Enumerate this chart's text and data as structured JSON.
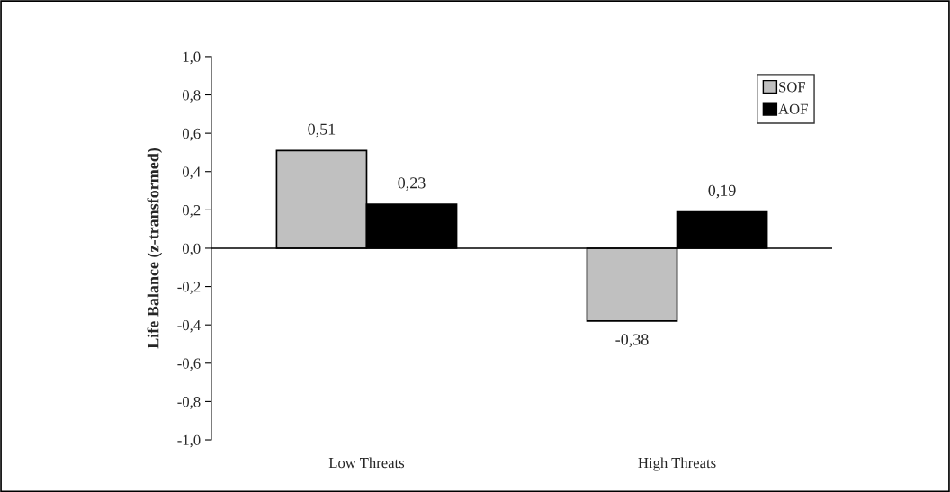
{
  "chart_data": {
    "type": "bar",
    "ylabel": "Life Balance (z-transformed)",
    "categories": [
      "Low Threats",
      "High Threats"
    ],
    "series": [
      {
        "name": "SOF",
        "color": "#c0c0c0",
        "values": [
          0.51,
          -0.38
        ],
        "value_labels": [
          "0,51",
          "-0,38"
        ]
      },
      {
        "name": "AOF",
        "color": "#000000",
        "values": [
          0.23,
          0.19
        ],
        "value_labels": [
          "0,23",
          "0,19"
        ]
      }
    ],
    "ylim": [
      -1.0,
      1.0
    ],
    "yticks": [
      {
        "value": -1.0,
        "label": "-1,0"
      },
      {
        "value": -0.8,
        "label": "-0,8"
      },
      {
        "value": -0.6,
        "label": "-0,6"
      },
      {
        "value": -0.4,
        "label": "-0,4"
      },
      {
        "value": -0.2,
        "label": "-0,2"
      },
      {
        "value": 0.0,
        "label": "0,0"
      },
      {
        "value": 0.2,
        "label": "0,2"
      },
      {
        "value": 0.4,
        "label": "0,4"
      },
      {
        "value": 0.6,
        "label": "0,6"
      },
      {
        "value": 0.8,
        "label": "0,8"
      },
      {
        "value": 1.0,
        "label": "1,0"
      }
    ],
    "legend": "top right"
  }
}
